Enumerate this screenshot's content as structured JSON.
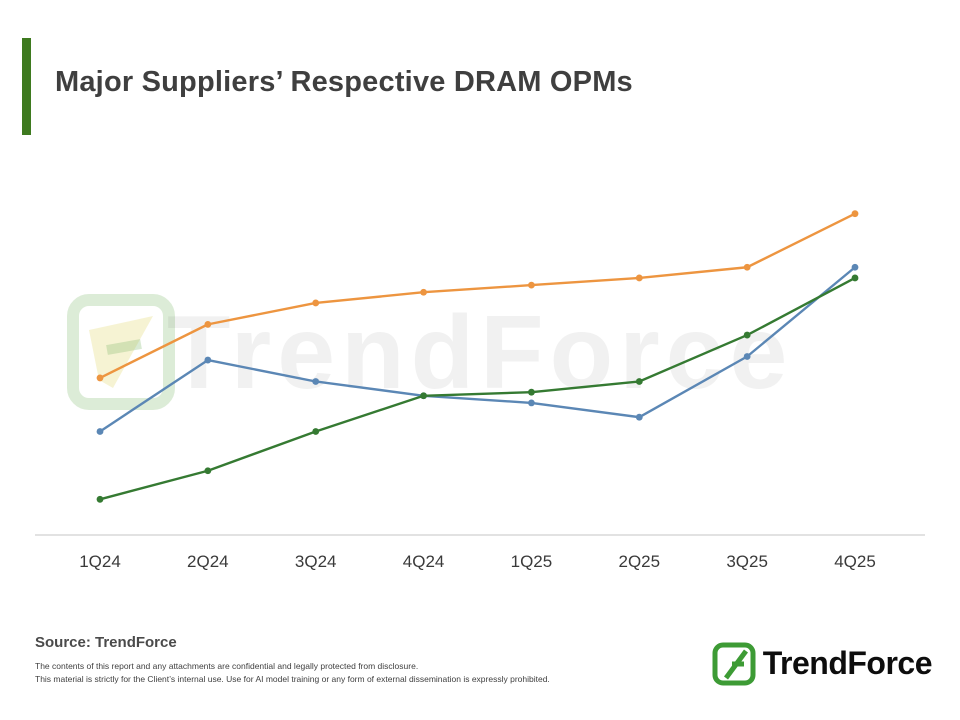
{
  "title": "Major Suppliers’ Respective DRAM OPMs",
  "source": "Source: TrendForce",
  "disclaimer": {
    "line1": "The contents of this report and any attachments are confidential and legally protected from disclosure.",
    "line2": "This material is strictly for the Client’s internal use. Use for AI model training or any form of external dissemination is expressly prohibited."
  },
  "watermark": {
    "text": "TrendForce"
  },
  "footer_logo": {
    "text": "TrendForce"
  },
  "colors": {
    "accent_bar": "#3E7A1F",
    "logo_green": "#3D9B35",
    "axis_line": "#D9D9D9",
    "tick_label": "#3A3A3A"
  },
  "chart_data": {
    "type": "line",
    "title": "Major Suppliers’ Respective DRAM OPMs",
    "categories": [
      "1Q24",
      "2Q24",
      "3Q24",
      "4Q24",
      "1Q25",
      "2Q25",
      "3Q25",
      "4Q25"
    ],
    "series": [
      {
        "name": "orange",
        "color": "#ED9540",
        "values": [
          44,
          59,
          65,
          68,
          70,
          72,
          75,
          90
        ]
      },
      {
        "name": "blue",
        "color": "#5B87B5",
        "values": [
          29,
          49,
          43,
          39,
          37,
          33,
          50,
          75
        ]
      },
      {
        "name": "green",
        "color": "#357A32",
        "values": [
          10,
          18,
          29,
          39,
          40,
          43,
          56,
          72
        ]
      }
    ],
    "xlabel": "",
    "ylabel": "",
    "ylim": [
      0,
      100
    ],
    "y_axis_visible": false,
    "grid": false,
    "legend": "none",
    "note": "Y-axis unlabeled in source; series values are estimated relative units (0-100)."
  }
}
